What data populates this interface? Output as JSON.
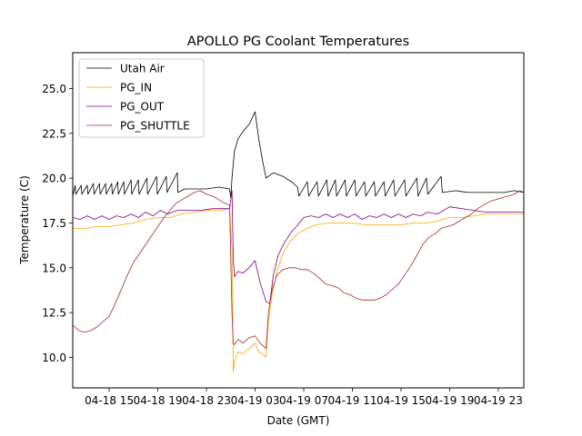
{
  "chart_data": {
    "type": "line",
    "title": "APOLLO PG Coolant Temperatures",
    "xlabel": "Date (GMT)",
    "ylabel": "Temperature (C)",
    "x_units": "hours since 04-18 00:00 GMT",
    "xlim": [
      12.0,
      49.1
    ],
    "ylim": [
      8.3,
      27.0
    ],
    "grid": false,
    "legend_position": "top-left",
    "x_ticks": [
      {
        "value": 15,
        "label": "04-18 15"
      },
      {
        "value": 19,
        "label": "04-18 19"
      },
      {
        "value": 23,
        "label": "04-18 23"
      },
      {
        "value": 27,
        "label": "04-19 03"
      },
      {
        "value": 31,
        "label": "04-19 07"
      },
      {
        "value": 35,
        "label": "04-19 11"
      },
      {
        "value": 39,
        "label": "04-19 15"
      },
      {
        "value": 43,
        "label": "04-19 19"
      },
      {
        "value": 47,
        "label": "04-19 23"
      }
    ],
    "y_ticks": [
      {
        "value": 10.0,
        "label": "10.0"
      },
      {
        "value": 12.5,
        "label": "12.5"
      },
      {
        "value": 15.0,
        "label": "15.0"
      },
      {
        "value": 17.5,
        "label": "17.5"
      },
      {
        "value": 20.0,
        "label": "20.0"
      },
      {
        "value": 22.5,
        "label": "22.5"
      },
      {
        "value": 25.0,
        "label": "25.0"
      }
    ],
    "series": [
      {
        "name": "Utah Air",
        "color": "#000000",
        "x": [
          12.0,
          12.2,
          12.25,
          12.7,
          12.75,
          13.2,
          13.25,
          13.7,
          13.75,
          14.2,
          14.25,
          14.7,
          14.75,
          15.2,
          15.25,
          15.7,
          15.75,
          16.2,
          16.25,
          16.8,
          16.85,
          17.4,
          17.45,
          18.1,
          18.15,
          18.9,
          18.95,
          19.7,
          19.75,
          20.6,
          20.65,
          21.2,
          22.0,
          23.0,
          24.0,
          24.9,
          25.0,
          25.1,
          25.3,
          25.6,
          26.0,
          26.5,
          27.0,
          27.3,
          27.6,
          27.9,
          28.5,
          29.3,
          30.0,
          30.5,
          30.6,
          31.3,
          31.4,
          32.1,
          32.2,
          32.9,
          33.0,
          33.6,
          33.7,
          34.4,
          34.5,
          35.2,
          35.3,
          36.0,
          36.1,
          36.8,
          36.9,
          37.6,
          37.7,
          38.4,
          38.5,
          39.3,
          39.4,
          40.3,
          40.4,
          41.1,
          41.2,
          42.3,
          42.4,
          43.5,
          44.5,
          45.5,
          46.5,
          47.5,
          48.3,
          49.1
        ],
        "y": [
          19.0,
          19.6,
          19.1,
          19.6,
          19.1,
          19.6,
          19.1,
          19.7,
          19.1,
          19.7,
          19.1,
          19.7,
          19.1,
          19.7,
          19.1,
          19.8,
          19.1,
          19.8,
          19.1,
          19.9,
          19.1,
          19.9,
          19.1,
          20.0,
          19.1,
          20.1,
          19.1,
          20.1,
          19.2,
          20.3,
          19.2,
          19.4,
          19.4,
          19.4,
          19.5,
          19.4,
          18.9,
          20.0,
          21.5,
          22.2,
          22.6,
          23.0,
          23.7,
          22.2,
          21.0,
          20.0,
          20.3,
          20.1,
          19.8,
          19.5,
          19.0,
          19.8,
          19.0,
          19.8,
          19.0,
          19.9,
          19.0,
          19.9,
          19.0,
          19.9,
          19.0,
          19.9,
          19.0,
          19.8,
          19.0,
          19.8,
          19.0,
          19.8,
          19.0,
          19.9,
          19.0,
          19.9,
          19.0,
          20.0,
          19.0,
          20.0,
          19.1,
          20.1,
          19.2,
          19.3,
          19.2,
          19.2,
          19.2,
          19.2,
          19.3,
          19.2
        ]
      },
      {
        "name": "PG_IN",
        "color": "#ffa500",
        "x": [
          12.0,
          13.0,
          14.0,
          15.0,
          16.0,
          17.0,
          18.0,
          19.0,
          20.0,
          21.0,
          22.0,
          23.0,
          24.0,
          24.9,
          25.1,
          25.2,
          25.3,
          25.6,
          26.0,
          26.5,
          27.0,
          27.3,
          27.6,
          27.9,
          28.1,
          28.4,
          28.8,
          29.3,
          29.9,
          30.5,
          31.0,
          32.0,
          33.0,
          34.0,
          35.0,
          36.0,
          37.0,
          38.0,
          39.0,
          40.0,
          41.0,
          42.0,
          43.0,
          44.0,
          45.0,
          46.0,
          47.0,
          48.0,
          49.1
        ],
        "y": [
          17.2,
          17.2,
          17.3,
          17.3,
          17.4,
          17.5,
          17.7,
          17.8,
          17.8,
          18.0,
          18.1,
          18.2,
          18.2,
          18.3,
          16.0,
          9.2,
          9.8,
          10.3,
          10.2,
          10.5,
          10.8,
          10.3,
          10.2,
          10.0,
          12.0,
          13.5,
          14.8,
          15.8,
          16.5,
          16.9,
          17.1,
          17.4,
          17.5,
          17.5,
          17.5,
          17.4,
          17.4,
          17.4,
          17.4,
          17.5,
          17.5,
          17.6,
          17.8,
          17.8,
          17.9,
          18.0,
          18.0,
          18.0,
          18.0
        ]
      },
      {
        "name": "PG_OUT",
        "color": "#800080",
        "x": [
          12.0,
          12.6,
          13.2,
          13.8,
          14.4,
          15.0,
          15.6,
          16.2,
          16.8,
          17.4,
          18.0,
          18.6,
          19.2,
          19.8,
          20.6,
          21.5,
          22.5,
          23.5,
          24.5,
          24.9,
          25.1,
          25.2,
          25.3,
          25.6,
          26.0,
          26.5,
          27.0,
          27.4,
          27.9,
          28.2,
          28.5,
          28.9,
          29.4,
          30.0,
          30.4,
          31.0,
          31.6,
          32.2,
          32.8,
          33.4,
          34.0,
          34.6,
          35.2,
          35.8,
          36.4,
          37.0,
          37.6,
          38.2,
          38.8,
          39.4,
          40.0,
          40.6,
          41.2,
          42.0,
          43.0,
          44.0,
          45.0,
          46.0,
          47.0,
          48.0,
          49.1
        ],
        "y": [
          17.8,
          17.7,
          17.9,
          17.7,
          17.9,
          17.7,
          17.9,
          17.8,
          18.0,
          17.8,
          18.1,
          17.9,
          18.2,
          18.0,
          18.2,
          18.2,
          18.2,
          18.3,
          18.3,
          18.3,
          19.3,
          15.5,
          14.5,
          14.8,
          14.7,
          15.0,
          15.4,
          14.2,
          13.1,
          13.0,
          14.6,
          15.7,
          16.4,
          17.0,
          17.3,
          17.8,
          17.9,
          17.8,
          18.0,
          17.8,
          18.0,
          17.8,
          18.0,
          17.7,
          17.9,
          17.8,
          18.0,
          17.8,
          18.0,
          17.8,
          18.0,
          17.9,
          18.1,
          18.0,
          18.4,
          18.3,
          18.2,
          18.1,
          18.1,
          18.1,
          18.1
        ]
      },
      {
        "name": "PG_SHUTTLE",
        "color": "#a52a2a",
        "x": [
          12.0,
          12.5,
          13.0,
          13.5,
          14.0,
          14.5,
          15.0,
          15.5,
          16.0,
          16.5,
          17.0,
          17.5,
          18.0,
          18.5,
          19.0,
          19.5,
          20.0,
          20.5,
          21.0,
          21.5,
          22.0,
          22.5,
          23.0,
          23.5,
          24.0,
          24.5,
          24.9,
          25.1,
          25.2,
          25.3,
          25.6,
          26.0,
          26.5,
          27.0,
          27.4,
          27.9,
          28.1,
          28.4,
          28.8,
          29.3,
          29.8,
          30.3,
          30.8,
          31.3,
          31.8,
          32.3,
          32.8,
          33.3,
          33.8,
          34.3,
          34.8,
          35.3,
          35.8,
          36.3,
          36.8,
          37.3,
          37.8,
          38.3,
          38.8,
          39.3,
          39.8,
          40.3,
          40.8,
          41.3,
          41.8,
          42.3,
          42.8,
          43.3,
          43.8,
          44.3,
          44.8,
          45.3,
          45.8,
          46.3,
          46.8,
          47.3,
          47.8,
          48.3,
          48.8,
          49.1
        ],
        "y": [
          11.8,
          11.5,
          11.4,
          11.5,
          11.7,
          12.0,
          12.3,
          13.0,
          13.8,
          14.6,
          15.3,
          15.8,
          16.3,
          16.8,
          17.3,
          17.8,
          18.2,
          18.6,
          18.8,
          19.0,
          19.2,
          19.3,
          19.1,
          19.0,
          18.8,
          18.6,
          18.5,
          12.5,
          10.8,
          10.7,
          11.0,
          10.8,
          11.1,
          11.2,
          10.8,
          10.5,
          12.5,
          13.8,
          14.6,
          14.9,
          15.0,
          15.0,
          14.9,
          14.9,
          14.7,
          14.4,
          14.1,
          14.0,
          13.9,
          13.6,
          13.5,
          13.3,
          13.2,
          13.2,
          13.2,
          13.3,
          13.5,
          13.8,
          14.1,
          14.6,
          15.1,
          15.7,
          16.3,
          16.7,
          16.9,
          17.2,
          17.3,
          17.4,
          17.6,
          17.8,
          18.0,
          18.3,
          18.5,
          18.7,
          18.8,
          18.9,
          19.0,
          19.1,
          19.3,
          19.2
        ]
      }
    ]
  }
}
